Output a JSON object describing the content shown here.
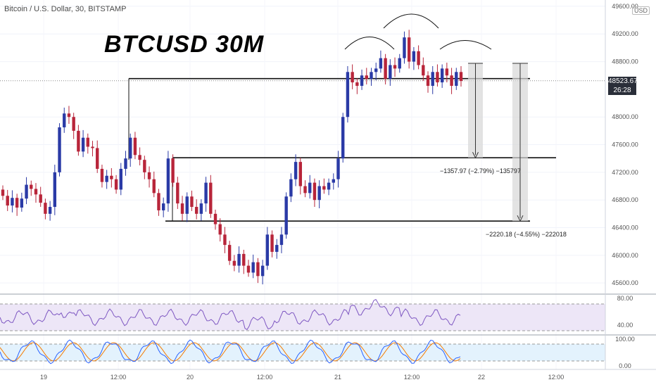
{
  "header": {
    "symbol_line": "Bitcoin / U.S. Dollar, 30, BITSTAMP",
    "currency_badge": "USD"
  },
  "annotation_title": "BTCUSD 30M",
  "current_price": {
    "value": "48523.67",
    "countdown": "26:28"
  },
  "measure_labels": [
    "−1357.97 (−2.79%) −135797",
    "−2220.18 (−4.55%) −222018"
  ],
  "colors": {
    "up": "#2a3aa6",
    "down": "#b8253a",
    "rsi_line": "#7e57c2",
    "rsi_band": "#ede6f7",
    "stoch_k": "#2962ff",
    "stoch_d": "#f57c00",
    "stoch_band": "#e3f2fd"
  },
  "chart_data": {
    "type": "candlestick",
    "title": "",
    "y_ticks": [
      "49600.00",
      "49200.00",
      "48800.00",
      "48000.00",
      "47600.00",
      "47200.00",
      "46800.00",
      "46400.00",
      "46000.00",
      "45600.00"
    ],
    "ylim": [
      45500,
      49650
    ],
    "x_ticks": [
      "19",
      "12:00",
      "20",
      "12:00",
      "21",
      "12:00",
      "22",
      "12:00"
    ],
    "candles": [
      [
        46950,
        46860
      ],
      [
        46860,
        46720
      ],
      [
        46720,
        46830
      ],
      [
        46830,
        46690
      ],
      [
        46690,
        46820
      ],
      [
        46820,
        47020
      ],
      [
        47020,
        46960
      ],
      [
        46960,
        46880
      ],
      [
        46880,
        46760
      ],
      [
        46760,
        46600
      ],
      [
        46600,
        46700
      ],
      [
        46700,
        47200
      ],
      [
        47200,
        47850
      ],
      [
        47850,
        48050
      ],
      [
        48050,
        48000
      ],
      [
        48000,
        47800
      ],
      [
        47800,
        47500
      ],
      [
        47500,
        47700
      ],
      [
        47700,
        47570
      ],
      [
        47570,
        47550
      ],
      [
        47550,
        47250
      ],
      [
        47250,
        47060
      ],
      [
        47060,
        47150
      ],
      [
        47150,
        47100
      ],
      [
        47100,
        46950
      ],
      [
        46950,
        47250
      ],
      [
        47250,
        47400
      ],
      [
        47400,
        47700
      ],
      [
        47700,
        47450
      ],
      [
        47450,
        47380
      ],
      [
        47380,
        47200
      ],
      [
        47200,
        47100
      ],
      [
        47100,
        46900
      ],
      [
        46900,
        46650
      ],
      [
        46650,
        46750
      ],
      [
        46750,
        47400
      ],
      [
        47400,
        47050
      ],
      [
        47050,
        46750
      ],
      [
        46750,
        46600
      ],
      [
        46600,
        46850
      ],
      [
        46850,
        46700
      ],
      [
        46700,
        46600
      ],
      [
        46600,
        46750
      ],
      [
        46750,
        47050
      ],
      [
        47050,
        46600
      ],
      [
        46600,
        46450
      ],
      [
        46450,
        46300
      ],
      [
        46300,
        46150
      ],
      [
        46150,
        45920
      ],
      [
        45920,
        45850
      ],
      [
        45850,
        46020
      ],
      [
        46020,
        45850
      ],
      [
        45850,
        45750
      ],
      [
        45750,
        45900
      ],
      [
        45900,
        45700
      ],
      [
        45700,
        45850
      ],
      [
        45850,
        46300
      ],
      [
        46300,
        46050
      ],
      [
        46050,
        46150
      ],
      [
        46150,
        46300
      ],
      [
        46300,
        46850
      ],
      [
        46850,
        47100
      ],
      [
        47100,
        47350
      ],
      [
        47350,
        47000
      ],
      [
        47000,
        46900
      ],
      [
        46900,
        47050
      ],
      [
        47050,
        46800
      ],
      [
        46800,
        47000
      ],
      [
        47000,
        46950
      ],
      [
        46950,
        47050
      ],
      [
        47050,
        47100
      ],
      [
        47100,
        47400
      ],
      [
        47400,
        48000
      ],
      [
        48000,
        48650
      ],
      [
        48650,
        48500
      ],
      [
        48500,
        48450
      ],
      [
        48450,
        48600
      ],
      [
        48600,
        48550
      ],
      [
        48550,
        48650
      ],
      [
        48650,
        48700
      ],
      [
        48700,
        48850
      ],
      [
        48850,
        48550
      ],
      [
        48550,
        48750
      ],
      [
        48750,
        48700
      ],
      [
        48700,
        48850
      ],
      [
        48850,
        49150
      ],
      [
        49150,
        48800
      ],
      [
        48800,
        48950
      ],
      [
        48950,
        48750
      ],
      [
        48750,
        48600
      ],
      [
        48600,
        48450
      ],
      [
        48450,
        48650
      ],
      [
        48650,
        48500
      ],
      [
        48500,
        48700
      ],
      [
        48700,
        48600
      ],
      [
        48600,
        48450
      ],
      [
        48450,
        48650
      ],
      [
        48650,
        48520
      ]
    ],
    "rsi_ticks": [
      "80.00",
      "40.00"
    ],
    "stoch_ticks": [
      "100.00",
      "0.00"
    ]
  }
}
